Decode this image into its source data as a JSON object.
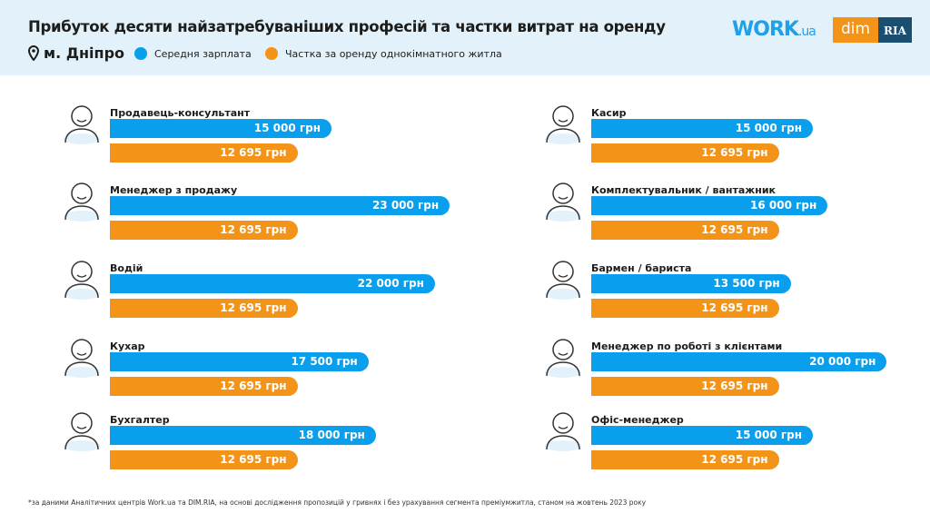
{
  "header": {
    "title": "Прибуток десяти найзатребуваніших професій та частки витрат на оренду",
    "city": "м. Дніпро",
    "logos": {
      "work": "WORK",
      "work_suffix": ".ua",
      "dim": "dim",
      "ria": "RIA"
    }
  },
  "colors": {
    "salary": "#0a9fec",
    "rent": "#f39419",
    "header_bg": "#e3f1fb"
  },
  "chart_data": {
    "type": "bar",
    "orientation": "horizontal",
    "unit": "грн",
    "series": [
      {
        "name": "Середня зарплата",
        "color": "#0a9fec"
      },
      {
        "name": "Частка за оренду однокімнатного житла",
        "color": "#f39419"
      }
    ],
    "items": [
      {
        "profession": "Продавець-консультант",
        "icon": "person-icon",
        "salary": 15000,
        "rent": 12695,
        "salary_label": "15 000 грн",
        "rent_label": "12 695 грн"
      },
      {
        "profession": "Менеджер з продажу",
        "icon": "headset-person-icon",
        "salary": 23000,
        "rent": 12695,
        "salary_label": "23 000 грн",
        "rent_label": "12 695 грн"
      },
      {
        "profession": "Водій",
        "icon": "driver-icon",
        "salary": 22000,
        "rent": 12695,
        "salary_label": "22 000 грн",
        "rent_label": "12 695 грн"
      },
      {
        "profession": "Кухар",
        "icon": "chef-icon",
        "salary": 17500,
        "rent": 12695,
        "salary_label": "17 500 грн",
        "rent_label": "12 695 грн"
      },
      {
        "profession": "Бухгалтер",
        "icon": "accountant-icon",
        "salary": 18000,
        "rent": 12695,
        "salary_label": "18 000 грн",
        "rent_label": "12 695 грн"
      },
      {
        "profession": "Касир",
        "icon": "cashier-icon",
        "salary": 15000,
        "rent": 12695,
        "salary_label": "15 000 грн",
        "rent_label": "12 695 грн"
      },
      {
        "profession": "Комплектувальник / вантажник",
        "icon": "loader-icon",
        "salary": 16000,
        "rent": 12695,
        "salary_label": "16 000 грн",
        "rent_label": "12 695 грн"
      },
      {
        "profession": "Бармен / бариста",
        "icon": "barista-icon",
        "salary": 13500,
        "rent": 12695,
        "salary_label": "13 500 грн",
        "rent_label": "12 695 грн"
      },
      {
        "profession": "Менеджер по роботі з клієнтами",
        "icon": "laptop-person-icon",
        "salary": 20000,
        "rent": 12695,
        "salary_label": "20 000 грн",
        "rent_label": "12 695 грн"
      },
      {
        "profession": "Офіс-менеджер",
        "icon": "office-person-icon",
        "salary": 15000,
        "rent": 12695,
        "salary_label": "15 000 грн",
        "rent_label": "12 695 грн"
      }
    ]
  },
  "footnote": "*за даними Аналітичних центрів Work.ua та DIM.RIA, на основі дослідження пропозицій у гривнях і без урахування сегмента преміумжитла, станом на жовтень 2023 року"
}
